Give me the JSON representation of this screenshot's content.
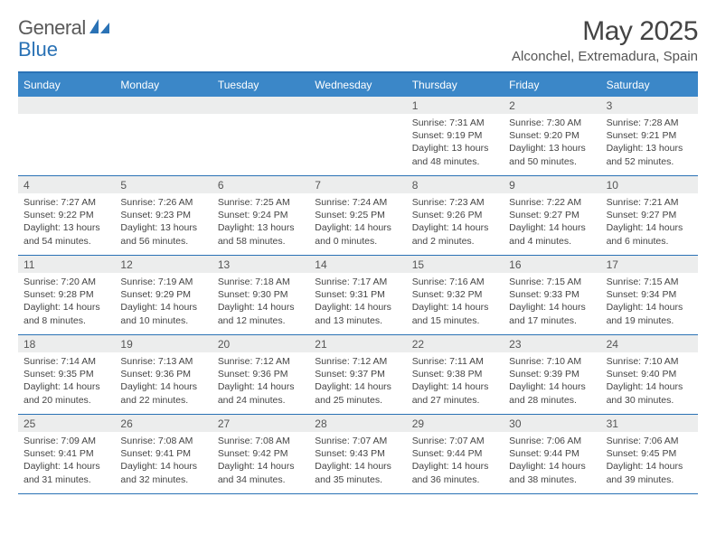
{
  "brand": {
    "word1": "General",
    "word2": "Blue"
  },
  "title": "May 2025",
  "location": "Alconchel, Extremadura, Spain",
  "colors": {
    "header_bar": "#3b87c8",
    "rule": "#2a72b5",
    "daynum_bg": "#eceded",
    "text": "#444444",
    "background": "#ffffff"
  },
  "weekdays": [
    "Sunday",
    "Monday",
    "Tuesday",
    "Wednesday",
    "Thursday",
    "Friday",
    "Saturday"
  ],
  "cells": [
    {
      "n": "",
      "sunrise": "",
      "sunset": "",
      "daylight": ""
    },
    {
      "n": "",
      "sunrise": "",
      "sunset": "",
      "daylight": ""
    },
    {
      "n": "",
      "sunrise": "",
      "sunset": "",
      "daylight": ""
    },
    {
      "n": "",
      "sunrise": "",
      "sunset": "",
      "daylight": ""
    },
    {
      "n": "1",
      "sunrise": "Sunrise: 7:31 AM",
      "sunset": "Sunset: 9:19 PM",
      "daylight": "Daylight: 13 hours and 48 minutes."
    },
    {
      "n": "2",
      "sunrise": "Sunrise: 7:30 AM",
      "sunset": "Sunset: 9:20 PM",
      "daylight": "Daylight: 13 hours and 50 minutes."
    },
    {
      "n": "3",
      "sunrise": "Sunrise: 7:28 AM",
      "sunset": "Sunset: 9:21 PM",
      "daylight": "Daylight: 13 hours and 52 minutes."
    },
    {
      "n": "4",
      "sunrise": "Sunrise: 7:27 AM",
      "sunset": "Sunset: 9:22 PM",
      "daylight": "Daylight: 13 hours and 54 minutes."
    },
    {
      "n": "5",
      "sunrise": "Sunrise: 7:26 AM",
      "sunset": "Sunset: 9:23 PM",
      "daylight": "Daylight: 13 hours and 56 minutes."
    },
    {
      "n": "6",
      "sunrise": "Sunrise: 7:25 AM",
      "sunset": "Sunset: 9:24 PM",
      "daylight": "Daylight: 13 hours and 58 minutes."
    },
    {
      "n": "7",
      "sunrise": "Sunrise: 7:24 AM",
      "sunset": "Sunset: 9:25 PM",
      "daylight": "Daylight: 14 hours and 0 minutes."
    },
    {
      "n": "8",
      "sunrise": "Sunrise: 7:23 AM",
      "sunset": "Sunset: 9:26 PM",
      "daylight": "Daylight: 14 hours and 2 minutes."
    },
    {
      "n": "9",
      "sunrise": "Sunrise: 7:22 AM",
      "sunset": "Sunset: 9:27 PM",
      "daylight": "Daylight: 14 hours and 4 minutes."
    },
    {
      "n": "10",
      "sunrise": "Sunrise: 7:21 AM",
      "sunset": "Sunset: 9:27 PM",
      "daylight": "Daylight: 14 hours and 6 minutes."
    },
    {
      "n": "11",
      "sunrise": "Sunrise: 7:20 AM",
      "sunset": "Sunset: 9:28 PM",
      "daylight": "Daylight: 14 hours and 8 minutes."
    },
    {
      "n": "12",
      "sunrise": "Sunrise: 7:19 AM",
      "sunset": "Sunset: 9:29 PM",
      "daylight": "Daylight: 14 hours and 10 minutes."
    },
    {
      "n": "13",
      "sunrise": "Sunrise: 7:18 AM",
      "sunset": "Sunset: 9:30 PM",
      "daylight": "Daylight: 14 hours and 12 minutes."
    },
    {
      "n": "14",
      "sunrise": "Sunrise: 7:17 AM",
      "sunset": "Sunset: 9:31 PM",
      "daylight": "Daylight: 14 hours and 13 minutes."
    },
    {
      "n": "15",
      "sunrise": "Sunrise: 7:16 AM",
      "sunset": "Sunset: 9:32 PM",
      "daylight": "Daylight: 14 hours and 15 minutes."
    },
    {
      "n": "16",
      "sunrise": "Sunrise: 7:15 AM",
      "sunset": "Sunset: 9:33 PM",
      "daylight": "Daylight: 14 hours and 17 minutes."
    },
    {
      "n": "17",
      "sunrise": "Sunrise: 7:15 AM",
      "sunset": "Sunset: 9:34 PM",
      "daylight": "Daylight: 14 hours and 19 minutes."
    },
    {
      "n": "18",
      "sunrise": "Sunrise: 7:14 AM",
      "sunset": "Sunset: 9:35 PM",
      "daylight": "Daylight: 14 hours and 20 minutes."
    },
    {
      "n": "19",
      "sunrise": "Sunrise: 7:13 AM",
      "sunset": "Sunset: 9:36 PM",
      "daylight": "Daylight: 14 hours and 22 minutes."
    },
    {
      "n": "20",
      "sunrise": "Sunrise: 7:12 AM",
      "sunset": "Sunset: 9:36 PM",
      "daylight": "Daylight: 14 hours and 24 minutes."
    },
    {
      "n": "21",
      "sunrise": "Sunrise: 7:12 AM",
      "sunset": "Sunset: 9:37 PM",
      "daylight": "Daylight: 14 hours and 25 minutes."
    },
    {
      "n": "22",
      "sunrise": "Sunrise: 7:11 AM",
      "sunset": "Sunset: 9:38 PM",
      "daylight": "Daylight: 14 hours and 27 minutes."
    },
    {
      "n": "23",
      "sunrise": "Sunrise: 7:10 AM",
      "sunset": "Sunset: 9:39 PM",
      "daylight": "Daylight: 14 hours and 28 minutes."
    },
    {
      "n": "24",
      "sunrise": "Sunrise: 7:10 AM",
      "sunset": "Sunset: 9:40 PM",
      "daylight": "Daylight: 14 hours and 30 minutes."
    },
    {
      "n": "25",
      "sunrise": "Sunrise: 7:09 AM",
      "sunset": "Sunset: 9:41 PM",
      "daylight": "Daylight: 14 hours and 31 minutes."
    },
    {
      "n": "26",
      "sunrise": "Sunrise: 7:08 AM",
      "sunset": "Sunset: 9:41 PM",
      "daylight": "Daylight: 14 hours and 32 minutes."
    },
    {
      "n": "27",
      "sunrise": "Sunrise: 7:08 AM",
      "sunset": "Sunset: 9:42 PM",
      "daylight": "Daylight: 14 hours and 34 minutes."
    },
    {
      "n": "28",
      "sunrise": "Sunrise: 7:07 AM",
      "sunset": "Sunset: 9:43 PM",
      "daylight": "Daylight: 14 hours and 35 minutes."
    },
    {
      "n": "29",
      "sunrise": "Sunrise: 7:07 AM",
      "sunset": "Sunset: 9:44 PM",
      "daylight": "Daylight: 14 hours and 36 minutes."
    },
    {
      "n": "30",
      "sunrise": "Sunrise: 7:06 AM",
      "sunset": "Sunset: 9:44 PM",
      "daylight": "Daylight: 14 hours and 38 minutes."
    },
    {
      "n": "31",
      "sunrise": "Sunrise: 7:06 AM",
      "sunset": "Sunset: 9:45 PM",
      "daylight": "Daylight: 14 hours and 39 minutes."
    }
  ]
}
